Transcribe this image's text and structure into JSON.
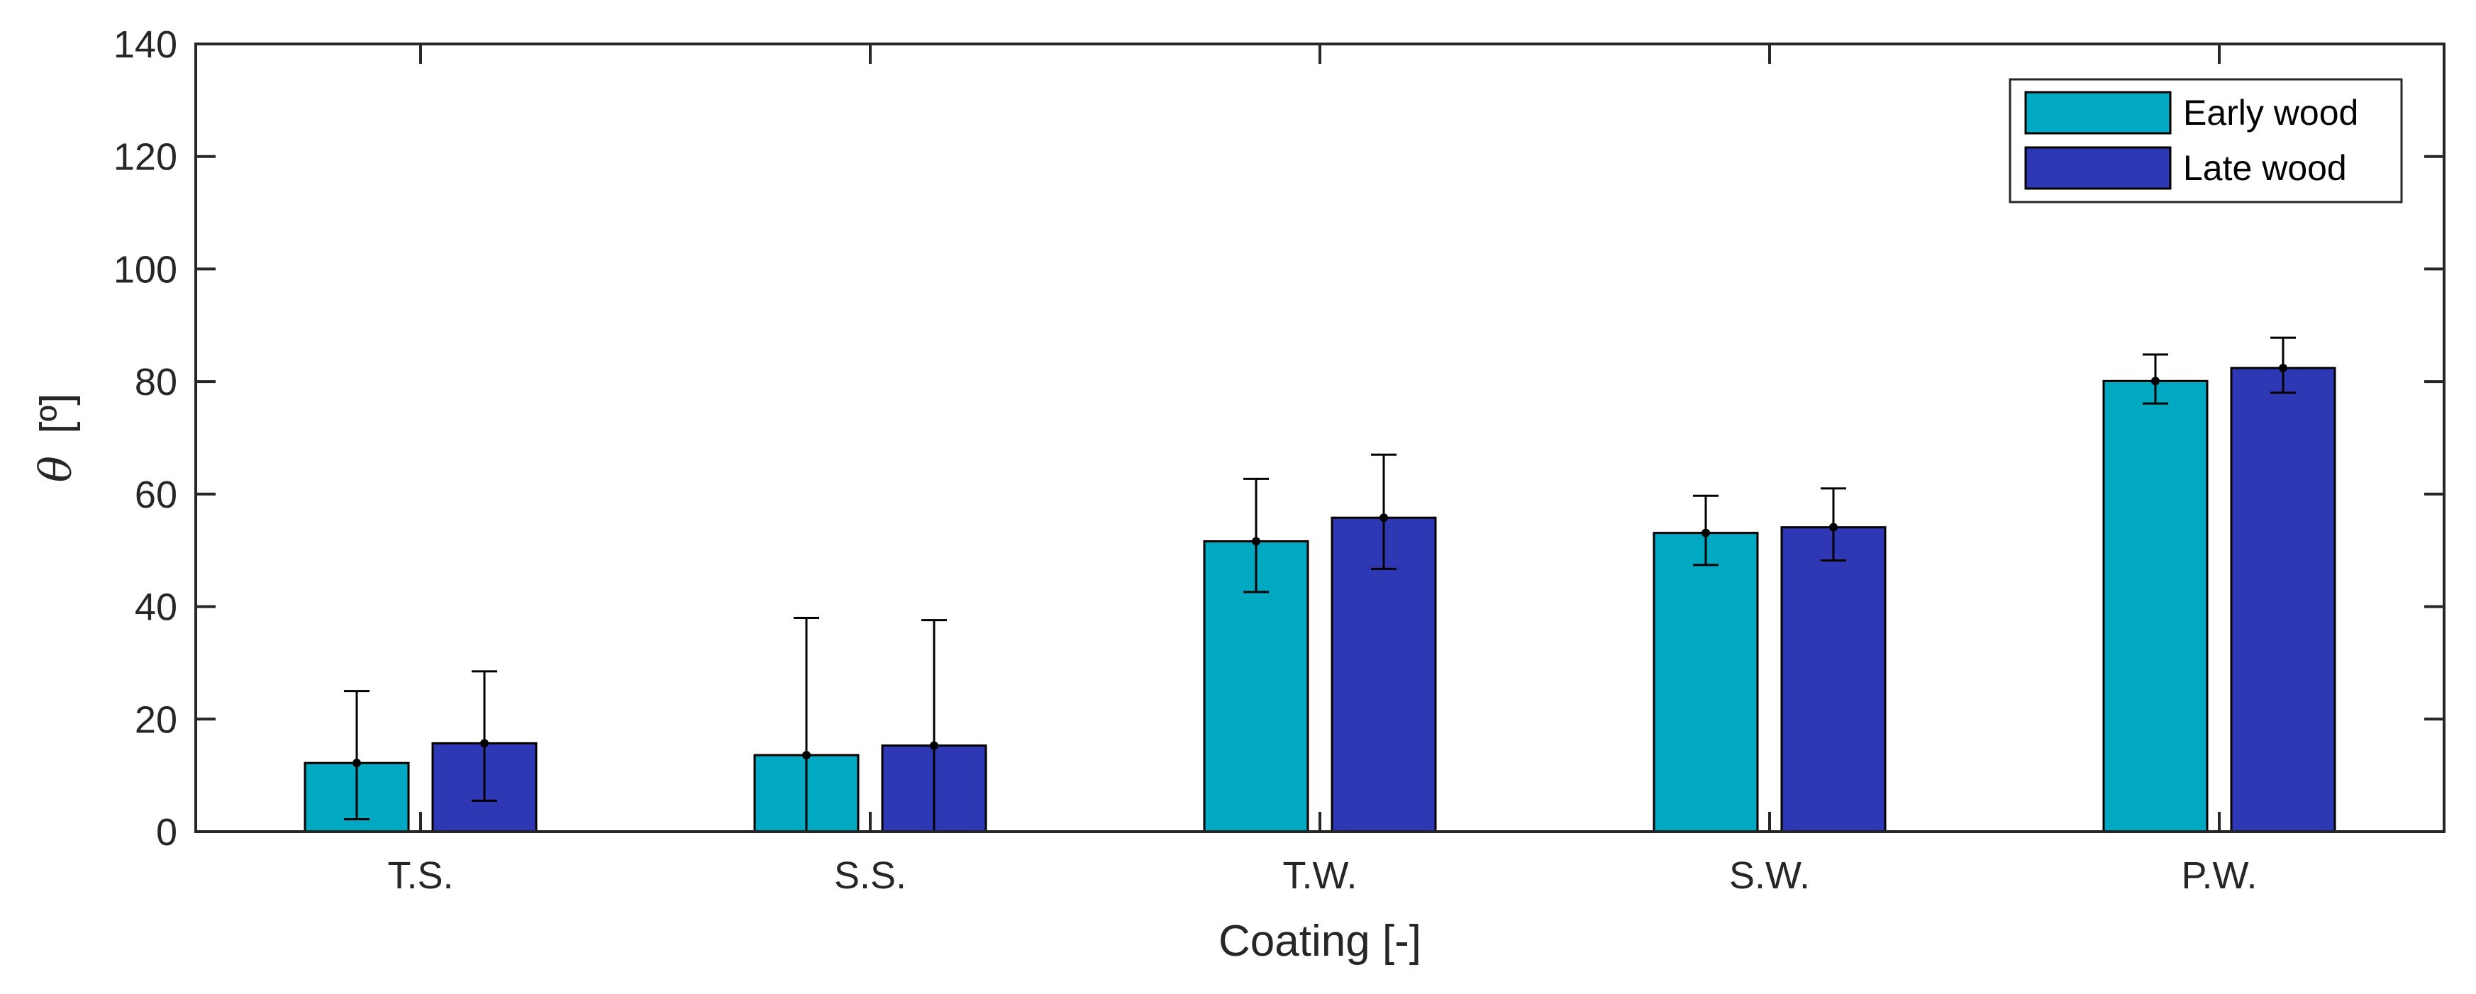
{
  "chart_data": {
    "type": "bar",
    "xlabel": "Coating [-]",
    "ylabel_symbol": "θ",
    "ylabel_unit": "[º]",
    "categories": [
      "T.S.",
      "S.S.",
      "T.W.",
      "S.W.",
      "P.W."
    ],
    "ylim": [
      0,
      140
    ],
    "yticks": [
      0,
      20,
      40,
      60,
      80,
      100,
      120,
      140
    ],
    "legend_position": "top-right",
    "series": [
      {
        "name": "Early wood",
        "color": "#00A8C2",
        "values": [
          12.2,
          13.6,
          51.6,
          53.1,
          80.1
        ],
        "err_low": [
          2.2,
          0,
          42.6,
          47.4,
          76.1
        ],
        "err_high": [
          25.0,
          38.0,
          62.7,
          59.7,
          84.8
        ]
      },
      {
        "name": "Late wood",
        "color": "#2E37B4",
        "values": [
          15.7,
          15.3,
          55.8,
          54.1,
          82.4
        ],
        "err_low": [
          5.5,
          0,
          46.7,
          48.2,
          78.0
        ],
        "err_high": [
          28.5,
          37.6,
          67.0,
          61.0,
          87.8
        ]
      }
    ]
  }
}
